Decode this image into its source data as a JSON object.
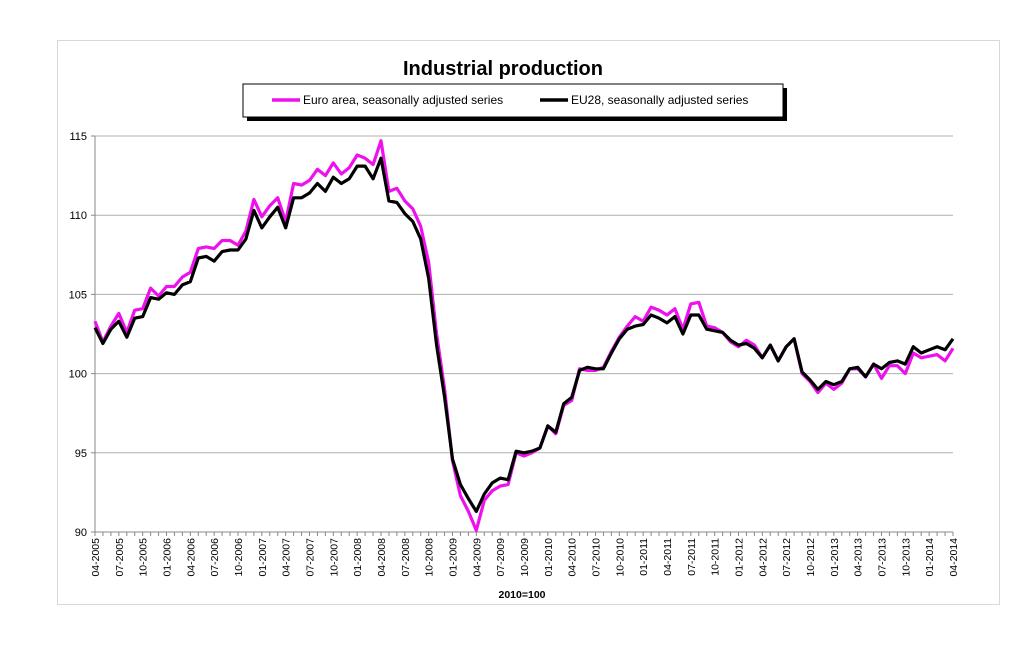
{
  "chart_data": {
    "type": "line",
    "title": "Industrial production",
    "xlabel": "2010=100",
    "ylabel": "",
    "ylim": [
      90,
      115
    ],
    "yticks": [
      90,
      95,
      100,
      105,
      110,
      115
    ],
    "grid": true,
    "legend_placement": "top",
    "x_tick_every": 3,
    "x": [
      "04-2005",
      "05-2005",
      "06-2005",
      "07-2005",
      "08-2005",
      "09-2005",
      "10-2005",
      "11-2005",
      "12-2005",
      "01-2006",
      "02-2006",
      "03-2006",
      "04-2006",
      "05-2006",
      "06-2006",
      "07-2006",
      "08-2006",
      "09-2006",
      "10-2006",
      "11-2006",
      "12-2006",
      "01-2007",
      "02-2007",
      "03-2007",
      "04-2007",
      "05-2007",
      "06-2007",
      "07-2007",
      "08-2007",
      "09-2007",
      "10-2007",
      "11-2007",
      "12-2007",
      "01-2008",
      "02-2008",
      "03-2008",
      "04-2008",
      "05-2008",
      "06-2008",
      "07-2008",
      "08-2008",
      "09-2008",
      "10-2008",
      "11-2008",
      "12-2008",
      "01-2009",
      "02-2009",
      "03-2009",
      "04-2009",
      "05-2009",
      "06-2009",
      "07-2009",
      "08-2009",
      "09-2009",
      "10-2009",
      "11-2009",
      "12-2009",
      "01-2010",
      "02-2010",
      "03-2010",
      "04-2010",
      "05-2010",
      "06-2010",
      "07-2010",
      "08-2010",
      "09-2010",
      "10-2010",
      "11-2010",
      "12-2010",
      "01-2011",
      "02-2011",
      "03-2011",
      "04-2011",
      "05-2011",
      "06-2011",
      "07-2011",
      "08-2011",
      "09-2011",
      "10-2011",
      "11-2011",
      "12-2011",
      "01-2012",
      "02-2012",
      "03-2012",
      "04-2012",
      "05-2012",
      "06-2012",
      "07-2012",
      "08-2012",
      "09-2012",
      "10-2012",
      "11-2012",
      "12-2012",
      "01-2013",
      "02-2013",
      "03-2013",
      "04-2013",
      "05-2013",
      "06-2013",
      "07-2013",
      "08-2013",
      "09-2013",
      "10-2013",
      "11-2013",
      "12-2013",
      "01-2014",
      "02-2014",
      "03-2014",
      "04-2014"
    ],
    "series": [
      {
        "name": "Euro area, seasonally adjusted series",
        "color": "#ee11ee",
        "values": [
          103.3,
          102.0,
          103.0,
          103.8,
          102.6,
          104.0,
          104.1,
          105.4,
          104.9,
          105.5,
          105.5,
          106.1,
          106.4,
          107.9,
          108.0,
          107.9,
          108.4,
          108.4,
          108.1,
          109.0,
          111.0,
          109.9,
          110.6,
          111.1,
          109.6,
          112.0,
          111.9,
          112.2,
          112.9,
          112.5,
          113.3,
          112.6,
          113.0,
          113.8,
          113.6,
          113.2,
          114.7,
          111.5,
          111.7,
          110.9,
          110.4,
          109.3,
          107.0,
          102.5,
          99.0,
          94.5,
          92.3,
          91.3,
          90.1,
          92.0,
          92.6,
          92.9,
          93.0,
          95.0,
          94.8,
          95.0,
          95.3,
          96.7,
          96.2,
          98.0,
          98.3,
          100.3,
          100.2,
          100.2,
          100.4,
          101.4,
          102.3,
          103.0,
          103.6,
          103.3,
          104.2,
          104.0,
          103.7,
          104.1,
          102.8,
          104.4,
          104.5,
          103.0,
          102.9,
          102.6,
          102.0,
          101.7,
          102.1,
          101.8,
          101.0,
          101.8,
          100.8,
          101.7,
          102.2,
          100.0,
          99.5,
          98.8,
          99.4,
          99.0,
          99.4,
          100.3,
          100.3,
          99.8,
          100.6,
          99.7,
          100.5,
          100.5,
          100.0,
          101.3,
          101.0,
          101.1,
          101.2,
          100.8,
          101.6
        ]
      },
      {
        "name": "EU28, seasonally adjusted series",
        "color": "#000000",
        "values": [
          102.9,
          101.9,
          102.8,
          103.3,
          102.3,
          103.5,
          103.6,
          104.8,
          104.7,
          105.1,
          105.0,
          105.6,
          105.8,
          107.3,
          107.4,
          107.1,
          107.7,
          107.8,
          107.8,
          108.5,
          110.3,
          109.2,
          109.9,
          110.5,
          109.2,
          111.1,
          111.1,
          111.4,
          112.0,
          111.5,
          112.4,
          112.0,
          112.3,
          113.1,
          113.1,
          112.3,
          113.6,
          110.9,
          110.8,
          110.1,
          109.6,
          108.5,
          106.0,
          101.8,
          98.5,
          94.6,
          93.0,
          92.1,
          91.3,
          92.4,
          93.1,
          93.4,
          93.3,
          95.1,
          95.0,
          95.1,
          95.3,
          96.7,
          96.3,
          98.1,
          98.5,
          100.2,
          100.4,
          100.3,
          100.3,
          101.3,
          102.2,
          102.8,
          103.0,
          103.1,
          103.7,
          103.5,
          103.2,
          103.6,
          102.5,
          103.7,
          103.7,
          102.8,
          102.7,
          102.6,
          102.1,
          101.8,
          101.9,
          101.6,
          101.0,
          101.8,
          100.8,
          101.7,
          102.2,
          100.1,
          99.6,
          99.0,
          99.5,
          99.3,
          99.5,
          100.3,
          100.4,
          99.8,
          100.6,
          100.3,
          100.7,
          100.8,
          100.6,
          101.7,
          101.3,
          101.5,
          101.7,
          101.5,
          102.2
        ]
      }
    ]
  }
}
